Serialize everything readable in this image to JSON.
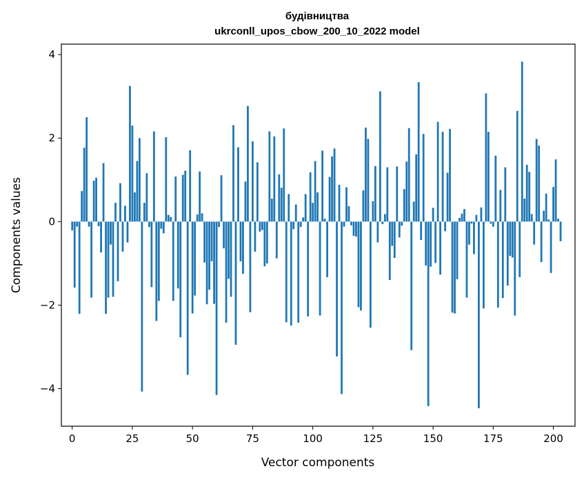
{
  "chart_data": {
    "type": "bar",
    "title": "будівництва",
    "subtitle": "ukrconll_upos_cbow_200_10_2022 model",
    "xlabel": "Vector components",
    "ylabel": "Components values",
    "xlim": [
      -4.5,
      209
    ],
    "ylim": [
      -4.9,
      4.25
    ],
    "xticks": [
      0,
      25,
      50,
      75,
      100,
      125,
      150,
      175,
      200
    ],
    "yticks": [
      -4,
      -2,
      0,
      2,
      4
    ],
    "grid": false,
    "bar_color": "#1f77b4",
    "values": [
      -0.21,
      -1.58,
      -0.12,
      -2.21,
      0.73,
      1.77,
      2.5,
      -0.12,
      -1.82,
      0.98,
      1.05,
      -0.11,
      -0.74,
      1.4,
      -2.21,
      -1.82,
      -0.55,
      -1.8,
      0.45,
      -1.43,
      0.92,
      -0.72,
      0.38,
      -0.5,
      3.25,
      2.3,
      0.7,
      1.45,
      2.0,
      -4.07,
      0.45,
      1.16,
      -0.13,
      -1.57,
      2.16,
      -2.38,
      -1.9,
      -0.17,
      -0.28,
      2.02,
      0.16,
      0.11,
      -1.9,
      1.08,
      -1.6,
      -2.77,
      1.12,
      1.22,
      -3.67,
      1.71,
      -2.2,
      -1.77,
      0.17,
      1.2,
      0.2,
      -0.98,
      -1.98,
      -1.63,
      -0.95,
      -1.97,
      -4.15,
      -0.13,
      1.11,
      -0.64,
      -2.42,
      -1.37,
      -1.8,
      2.31,
      -2.95,
      1.78,
      -0.95,
      -1.25,
      0.96,
      2.77,
      -2.17,
      1.92,
      -0.72,
      1.42,
      -0.24,
      -0.2,
      -1.07,
      -1.0,
      2.16,
      0.55,
      2.04,
      -0.88,
      1.13,
      0.81,
      2.23,
      -2.41,
      0.66,
      -2.49,
      -0.18,
      0.41,
      -2.42,
      -0.13,
      0.1,
      0.66,
      -2.27,
      1.18,
      0.45,
      1.45,
      0.7,
      -2.25,
      1.7,
      0.07,
      -1.33,
      1.07,
      1.56,
      1.75,
      -3.23,
      0.88,
      -4.13,
      -0.12,
      0.82,
      0.37,
      -0.09,
      -0.34,
      -0.36,
      -2.05,
      -2.13,
      0.75,
      2.25,
      1.98,
      -2.54,
      0.49,
      1.33,
      -0.5,
      3.12,
      -0.06,
      0.18,
      1.3,
      -1.4,
      -0.58,
      -0.87,
      1.32,
      -0.38,
      -0.1,
      0.78,
      1.44,
      2.24,
      -3.08,
      0.48,
      1.61,
      3.34,
      -0.44,
      2.1,
      -1.05,
      -4.42,
      -1.08,
      0.33,
      -0.99,
      2.39,
      -1.27,
      2.15,
      -0.23,
      1.17,
      2.22,
      -2.18,
      -2.2,
      -1.38,
      0.09,
      0.19,
      0.3,
      -1.82,
      -0.55,
      -0.05,
      -0.78,
      0.16,
      -4.47,
      0.34,
      -2.08,
      3.07,
      2.15,
      -0.05,
      -0.12,
      1.58,
      -2.06,
      0.76,
      -1.83,
      1.3,
      -1.53,
      -0.82,
      -0.86,
      -2.25,
      2.65,
      -1.33,
      3.83,
      0.55,
      1.36,
      1.19,
      0.18,
      -0.55,
      1.98,
      1.82,
      -0.97,
      0.26,
      0.67,
      0.05,
      -1.23,
      0.83,
      1.49,
      0.07,
      -0.47
    ]
  }
}
